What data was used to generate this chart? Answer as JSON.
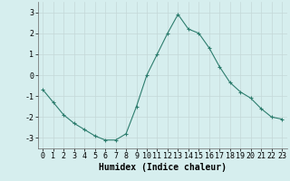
{
  "x": [
    0,
    1,
    2,
    3,
    4,
    5,
    6,
    7,
    8,
    9,
    10,
    11,
    12,
    13,
    14,
    15,
    16,
    17,
    18,
    19,
    20,
    21,
    22,
    23
  ],
  "y": [
    -0.7,
    -1.3,
    -1.9,
    -2.3,
    -2.6,
    -2.9,
    -3.1,
    -3.1,
    -2.8,
    -1.5,
    0.0,
    1.0,
    2.0,
    2.9,
    2.2,
    2.0,
    1.3,
    0.4,
    -0.35,
    -0.8,
    -1.1,
    -1.6,
    -2.0,
    -2.1
  ],
  "line_color": "#2d7d6e",
  "marker": "+",
  "marker_size": 3,
  "bg_color": "#d6eeee",
  "grid_color": "#c4d8d8",
  "xlabel": "Humidex (Indice chaleur)",
  "xlim": [
    -0.5,
    23.5
  ],
  "ylim": [
    -3.5,
    3.5
  ],
  "xtick_labels": [
    "0",
    "1",
    "2",
    "3",
    "4",
    "5",
    "6",
    "7",
    "8",
    "9",
    "10",
    "11",
    "12",
    "13",
    "14",
    "15",
    "16",
    "17",
    "18",
    "19",
    "20",
    "21",
    "22",
    "23"
  ],
  "ytick_values": [
    -3,
    -2,
    -1,
    0,
    1,
    2,
    3
  ],
  "xlabel_fontsize": 7,
  "tick_fontsize": 6
}
